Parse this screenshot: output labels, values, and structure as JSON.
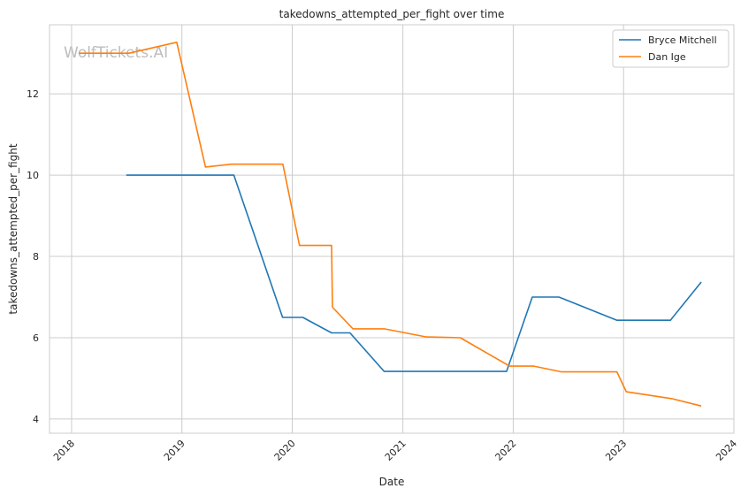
{
  "chart_data": {
    "type": "line",
    "title": "takedowns_attempted_per_fight over time",
    "xlabel": "Date",
    "ylabel": "takedowns_attempted_per_fight",
    "watermark": "WolfTickets.AI",
    "x_ticks": [
      "2018",
      "2019",
      "2020",
      "2021",
      "2022",
      "2023",
      "2024"
    ],
    "y_ticks": [
      "4",
      "6",
      "8",
      "10",
      "12"
    ],
    "xlim": [
      "2017-10-20",
      "2024-01-01"
    ],
    "ylim": [
      3.65,
      13.7
    ],
    "grid": true,
    "legend_position": "top-right",
    "colors": {
      "Bryce Mitchell": "#1f77b4",
      "Dan Ige": "#ff7f0e"
    },
    "series": [
      {
        "name": "Bryce Mitchell",
        "color": "#1f77b4",
        "points": [
          {
            "x": "2018-07-01",
            "y": 10.0
          },
          {
            "x": "2019-06-22",
            "y": 10.0
          },
          {
            "x": "2019-11-30",
            "y": 6.5
          },
          {
            "x": "2020-02-05",
            "y": 6.5
          },
          {
            "x": "2020-05-10",
            "y": 6.12
          },
          {
            "x": "2020-07-10",
            "y": 6.12
          },
          {
            "x": "2020-10-31",
            "y": 5.17
          },
          {
            "x": "2021-12-10",
            "y": 5.17
          },
          {
            "x": "2022-03-05",
            "y": 7.0
          },
          {
            "x": "2022-06-01",
            "y": 7.0
          },
          {
            "x": "2022-12-10",
            "y": 6.43
          },
          {
            "x": "2023-06-05",
            "y": 6.43
          },
          {
            "x": "2023-09-15",
            "y": 7.37
          }
        ]
      },
      {
        "name": "Dan Ige",
        "color": "#ff7f0e",
        "points": [
          {
            "x": "2018-01-25",
            "y": 13.0
          },
          {
            "x": "2018-07-10",
            "y": 13.0
          },
          {
            "x": "2018-12-15",
            "y": 13.27
          },
          {
            "x": "2019-03-20",
            "y": 10.2
          },
          {
            "x": "2019-06-15",
            "y": 10.27
          },
          {
            "x": "2019-12-01",
            "y": 10.27
          },
          {
            "x": "2020-01-25",
            "y": 8.27
          },
          {
            "x": "2020-05-10",
            "y": 8.27
          },
          {
            "x": "2020-05-13",
            "y": 6.75
          },
          {
            "x": "2020-07-20",
            "y": 6.22
          },
          {
            "x": "2020-10-31",
            "y": 6.22
          },
          {
            "x": "2021-03-20",
            "y": 6.02
          },
          {
            "x": "2021-07-10",
            "y": 6.0
          },
          {
            "x": "2021-12-20",
            "y": 5.3
          },
          {
            "x": "2022-03-10",
            "y": 5.3
          },
          {
            "x": "2022-06-10",
            "y": 5.16
          },
          {
            "x": "2022-12-10",
            "y": 5.16
          },
          {
            "x": "2023-01-10",
            "y": 4.67
          },
          {
            "x": "2023-06-10",
            "y": 4.5
          },
          {
            "x": "2023-09-15",
            "y": 4.32
          }
        ]
      }
    ]
  }
}
